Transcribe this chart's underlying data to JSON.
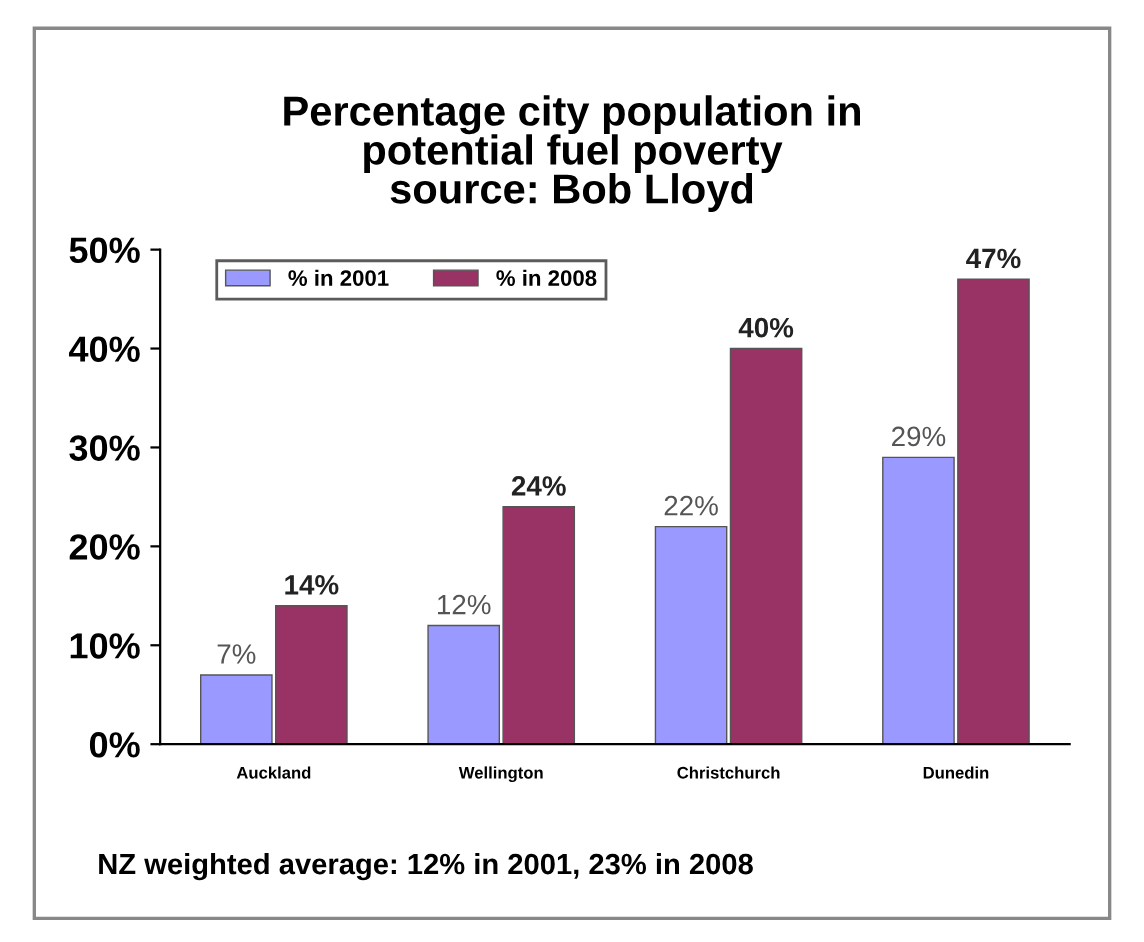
{
  "chart_data": {
    "type": "bar",
    "title": "Percentage city population in\npotential fuel poverty\nsource: Bob Lloyd",
    "categories": [
      "Auckland",
      "Wellington",
      "Christchurch",
      "Dunedin"
    ],
    "series": [
      {
        "name": "% in 2001",
        "color": "#9999ff",
        "values": [
          7,
          12,
          22,
          29
        ],
        "value_labels": [
          "7%",
          "12%",
          "22%",
          "29%"
        ]
      },
      {
        "name": "% in 2008",
        "color": "#993366",
        "values": [
          14,
          24,
          40,
          47
        ],
        "value_labels": [
          "14%",
          "24%",
          "40%",
          "47%"
        ]
      }
    ],
    "ylim": [
      0,
      50
    ],
    "yticks": [
      {
        "value": 0,
        "label": "0%"
      },
      {
        "value": 10,
        "label": "10%"
      },
      {
        "value": 20,
        "label": "20%"
      },
      {
        "value": 30,
        "label": "30%"
      },
      {
        "value": 40,
        "label": "40%"
      },
      {
        "value": 50,
        "label": "50%"
      }
    ],
    "legend": "top left",
    "grid": false,
    "annotations": [
      "NZ weighted average: 12% in 2001, 23% in 2008"
    ]
  }
}
